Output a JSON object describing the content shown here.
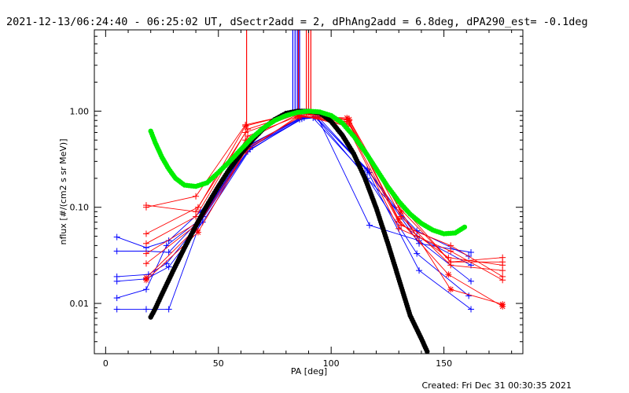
{
  "chart_data": {
    "type": "line",
    "title": "2021-12-13/06:24:40 - 06:25:02 UT, dSectr2add = 2, dPhAng2add = 6.8deg, dPA290_est= -0.1deg",
    "xlabel": "PA [deg]",
    "ylabel": "nflux [#/(cm2 s sr MeV)]",
    "footer": "Created: Fri Dec 31 00:30:35 2021",
    "xlim": [
      -5,
      185
    ],
    "ylim": [
      0.003,
      7
    ],
    "yscale": "log",
    "x_ticks": [
      0,
      50,
      100,
      150
    ],
    "x_tick_labels": [
      "0",
      "50",
      "100",
      "150"
    ],
    "y_ticks": [
      0.01,
      0.1,
      1.0
    ],
    "y_tick_labels": [
      "0.01",
      "0.10",
      "1.00"
    ],
    "grid": false,
    "legend": "none",
    "colors": {
      "red": "#ff0000",
      "blue": "#0000ff",
      "black": "#000000",
      "green": "#00ee00"
    },
    "vertical_markers": [
      {
        "x": 62.5,
        "color": "#ff0000",
        "y_low": 0.65
      },
      {
        "x": 83,
        "color": "#0000ff",
        "y_low": 0.9
      },
      {
        "x": 84,
        "color": "#0000ff",
        "y_low": 0.9
      },
      {
        "x": 85,
        "color": "#0000ff",
        "y_low": 0.9
      },
      {
        "x": 85.5,
        "color": "#ff0000",
        "y_low": 0.9
      },
      {
        "x": 86,
        "color": "#0000ff",
        "y_low": 0.9
      },
      {
        "x": 89,
        "color": "#ff0000",
        "y_low": 0.9
      },
      {
        "x": 90,
        "color": "#ff0000",
        "y_low": 0.9
      },
      {
        "x": 91,
        "color": "#ff0000",
        "y_low": 0.9
      }
    ],
    "series": [
      {
        "color": "#0000ff",
        "marker": "plus",
        "x": [
          5,
          18,
          28,
          42,
          63,
          87,
          93,
          116,
          138,
          161
        ],
        "y": [
          0.049,
          0.038,
          0.045,
          0.09,
          0.41,
          0.86,
          0.87,
          0.2,
          0.057,
          0.031
        ]
      },
      {
        "color": "#0000ff",
        "marker": "plus",
        "x": [
          5,
          18,
          28,
          43,
          64,
          88,
          94,
          117,
          139,
          162
        ],
        "y": [
          0.035,
          0.035,
          0.034,
          0.08,
          0.42,
          0.85,
          0.86,
          0.065,
          0.045,
          0.017
        ]
      },
      {
        "color": "#0000ff",
        "marker": "plus",
        "x": [
          5,
          19,
          27,
          42,
          63,
          86,
          92,
          115,
          138,
          161
        ],
        "y": [
          0.019,
          0.02,
          0.026,
          0.07,
          0.38,
          0.82,
          0.85,
          0.22,
          0.033,
          0.012
        ]
      },
      {
        "color": "#0000ff",
        "marker": "plus",
        "x": [
          5,
          18,
          28,
          43,
          64,
          87,
          93,
          116,
          139,
          162
        ],
        "y": [
          0.017,
          0.018,
          0.024,
          0.07,
          0.4,
          0.83,
          0.88,
          0.24,
          0.022,
          0.0087
        ]
      },
      {
        "color": "#0000ff",
        "marker": "plus",
        "x": [
          5,
          18,
          27,
          42,
          63,
          86,
          93,
          116,
          138,
          162
        ],
        "y": [
          0.0114,
          0.014,
          0.04,
          0.075,
          0.43,
          0.84,
          0.87,
          0.25,
          0.05,
          0.025
        ]
      },
      {
        "color": "#0000ff",
        "marker": "plus",
        "x": [
          5,
          18,
          28,
          43,
          64,
          87,
          94,
          117,
          139,
          162
        ],
        "y": [
          0.0087,
          0.0087,
          0.0087,
          0.08,
          0.45,
          0.86,
          0.88,
          0.23,
          0.042,
          0.034
        ]
      },
      {
        "color": "#ff0000",
        "marker": "plus",
        "x": [
          18,
          40,
          62,
          85,
          107,
          130,
          153,
          176
        ],
        "y": [
          0.105,
          0.09,
          0.7,
          0.96,
          0.82,
          0.1,
          0.027,
          0.03
        ]
      },
      {
        "color": "#ff0000",
        "marker": "plus",
        "x": [
          18,
          40,
          62,
          85,
          107,
          130,
          153,
          176
        ],
        "y": [
          0.1,
          0.13,
          0.72,
          0.95,
          0.78,
          0.11,
          0.027,
          0.027
        ]
      },
      {
        "color": "#ff0000",
        "marker": "plus",
        "x": [
          18,
          41,
          63,
          86,
          108,
          131,
          153,
          176
        ],
        "y": [
          0.053,
          0.1,
          0.65,
          0.97,
          0.8,
          0.08,
          0.025,
          0.022
        ]
      },
      {
        "color": "#ff0000",
        "marker": "plus",
        "x": [
          18,
          40,
          62,
          85,
          107,
          130,
          152,
          176
        ],
        "y": [
          0.042,
          0.08,
          0.6,
          0.93,
          0.72,
          0.07,
          0.03,
          0.025
        ]
      },
      {
        "color": "#ff0000",
        "marker": "plus",
        "x": [
          18,
          41,
          63,
          86,
          108,
          131,
          153,
          176
        ],
        "y": [
          0.033,
          0.07,
          0.55,
          0.9,
          0.75,
          0.065,
          0.04,
          0.019
        ]
      },
      {
        "color": "#ff0000",
        "marker": "plus",
        "x": [
          18,
          40,
          62,
          85,
          107,
          130,
          153,
          176
        ],
        "y": [
          0.026,
          0.065,
          0.5,
          0.92,
          0.7,
          0.06,
          0.035,
          0.0175
        ]
      },
      {
        "color": "#ff0000",
        "marker": "star",
        "x": [
          18,
          40,
          62,
          85,
          107,
          130,
          152,
          176
        ],
        "y": [
          0.0185,
          0.06,
          0.38,
          0.88,
          0.85,
          0.075,
          0.02,
          0.0093
        ]
      },
      {
        "color": "#ff0000",
        "marker": "star",
        "x": [
          18,
          41,
          63,
          86,
          108,
          131,
          153,
          176
        ],
        "y": [
          0.0175,
          0.055,
          0.42,
          0.87,
          0.82,
          0.09,
          0.014,
          0.0098
        ]
      }
    ],
    "model_curves": [
      {
        "color": "#000000",
        "style": "dots",
        "x": [
          20,
          22,
          25,
          30,
          35,
          40,
          45,
          50,
          55,
          60,
          65,
          70,
          75,
          80,
          85,
          90,
          95,
          100,
          105,
          110,
          115,
          120,
          125,
          130,
          135,
          140,
          143
        ],
        "y": [
          0.0072,
          0.0088,
          0.0125,
          0.022,
          0.038,
          0.064,
          0.105,
          0.165,
          0.25,
          0.36,
          0.5,
          0.66,
          0.82,
          0.95,
          1.0,
          1.0,
          0.96,
          0.78,
          0.56,
          0.36,
          0.2,
          0.098,
          0.043,
          0.018,
          0.0075,
          0.0043,
          0.003
        ]
      },
      {
        "color": "#00ee00",
        "style": "dots",
        "x": [
          20,
          22,
          25,
          28,
          31,
          35,
          40,
          45,
          50,
          55,
          60,
          65,
          70,
          75,
          80,
          85,
          90,
          95,
          100,
          105,
          110,
          115,
          120,
          125,
          130,
          135,
          140,
          145,
          150,
          155,
          160
        ],
        "y": [
          0.62,
          0.47,
          0.33,
          0.25,
          0.2,
          0.17,
          0.165,
          0.18,
          0.23,
          0.3,
          0.4,
          0.53,
          0.67,
          0.8,
          0.9,
          0.97,
          1.0,
          0.98,
          0.9,
          0.75,
          0.55,
          0.38,
          0.25,
          0.165,
          0.115,
          0.085,
          0.068,
          0.058,
          0.053,
          0.054,
          0.064
        ]
      }
    ]
  }
}
